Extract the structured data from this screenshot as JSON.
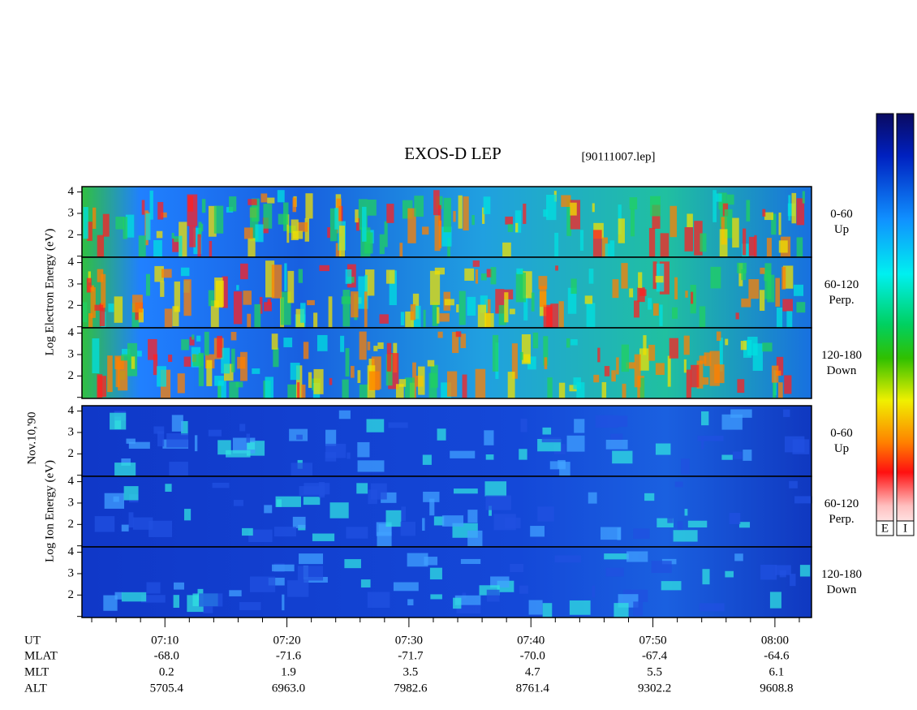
{
  "chart_data": {
    "type": "spectrogram",
    "title": "EXOS-D LEP",
    "subtitle": "[90111007.lep]",
    "date_label": "Nov.10,'90",
    "y_titles": [
      "Log Electron Energy (eV)",
      "Log Ion Energy (eV)"
    ],
    "ylim": [
      0.95,
      4.25
    ],
    "yticks": [
      2,
      3,
      4
    ],
    "minor_yticks": [
      1
    ],
    "xlim": [
      3.2,
      63
    ],
    "xticks": [
      {
        "value": 10,
        "label": "07:10"
      },
      {
        "value": 20,
        "label": "07:20"
      },
      {
        "value": 30,
        "label": "07:30"
      },
      {
        "value": 40,
        "label": "07:40"
      },
      {
        "value": 50,
        "label": "07:50"
      },
      {
        "value": 60,
        "label": "08:00"
      }
    ],
    "minor_xticks": [
      4,
      6,
      8,
      12,
      14,
      16,
      18,
      22,
      24,
      26,
      28,
      32,
      34,
      36,
      38,
      42,
      44,
      46,
      48,
      52,
      54,
      56,
      58,
      62
    ],
    "x_row_label": "UT",
    "panels": [
      {
        "species": "electron",
        "label_lines": [
          "0-60",
          "Up"
        ]
      },
      {
        "species": "electron",
        "label_lines": [
          "60-120",
          "Perp."
        ]
      },
      {
        "species": "electron",
        "label_lines": [
          "120-180",
          "Down"
        ]
      },
      {
        "species": "ion",
        "label_lines": [
          "0-60",
          "Up"
        ]
      },
      {
        "species": "ion",
        "label_lines": [
          "60-120",
          "Perp."
        ]
      },
      {
        "species": "ion",
        "label_lines": [
          "120-180",
          "Down"
        ]
      }
    ],
    "ephemeris": [
      {
        "name": "MLAT",
        "labels": [
          "-68.0",
          "-71.6",
          "-71.7",
          "-70.0",
          "-67.4",
          "-64.6"
        ]
      },
      {
        "name": "MLT",
        "labels": [
          "0.2",
          "1.9",
          "3.5",
          "4.7",
          "5.5",
          "6.1"
        ]
      },
      {
        "name": "ALT",
        "labels": [
          "5705.4",
          "6963.0",
          "7982.6",
          "8761.4",
          "9302.2",
          "9608.8"
        ]
      }
    ],
    "colorbars": [
      "E",
      "I"
    ]
  }
}
